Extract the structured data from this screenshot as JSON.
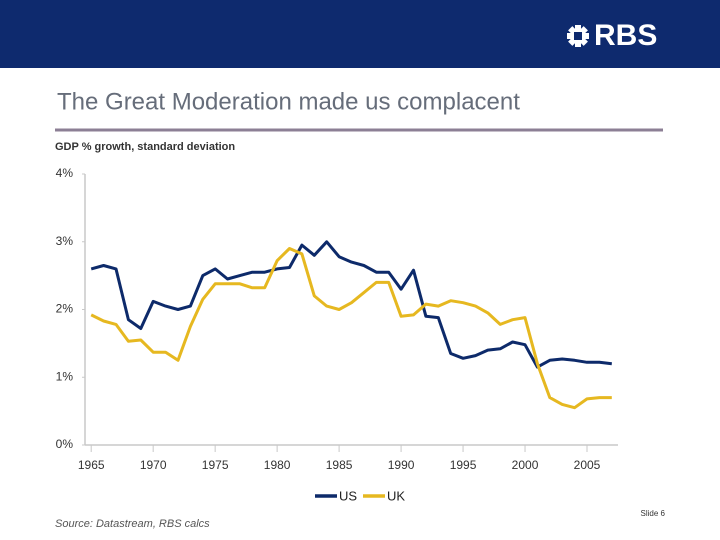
{
  "header": {
    "logo": "RBS"
  },
  "chart_data": {
    "type": "line",
    "title": "The Great Moderation made us complacent",
    "subtitle": "GDP % growth, standard deviation",
    "x": [
      1965,
      1966,
      1967,
      1968,
      1969,
      1970,
      1971,
      1972,
      1973,
      1974,
      1975,
      1976,
      1977,
      1978,
      1979,
      1980,
      1981,
      1982,
      1983,
      1984,
      1985,
      1986,
      1987,
      1988,
      1989,
      1990,
      1991,
      1992,
      1993,
      1994,
      1995,
      1996,
      1997,
      1998,
      1999,
      2000,
      2001,
      2002,
      2003,
      2004,
      2005,
      2006,
      2007
    ],
    "series": [
      {
        "name": "US",
        "color": "#0d2a6a",
        "values": [
          2.6,
          2.65,
          2.6,
          1.85,
          1.72,
          2.12,
          2.05,
          2.0,
          2.05,
          2.5,
          2.6,
          2.45,
          2.5,
          2.55,
          2.55,
          2.6,
          2.62,
          2.95,
          2.8,
          3.0,
          2.78,
          2.7,
          2.65,
          2.55,
          2.55,
          2.3,
          2.58,
          1.9,
          1.88,
          1.35,
          1.28,
          1.32,
          1.4,
          1.42,
          1.52,
          1.48,
          1.15,
          1.25,
          1.27,
          1.25,
          1.22,
          1.22,
          1.2
        ]
      },
      {
        "name": "UK",
        "color": "#e6b820",
        "values": [
          1.92,
          1.83,
          1.78,
          1.53,
          1.55,
          1.37,
          1.37,
          1.25,
          1.75,
          2.15,
          2.38,
          2.38,
          2.38,
          2.32,
          2.32,
          2.72,
          2.9,
          2.82,
          2.2,
          2.05,
          2.0,
          2.1,
          2.25,
          2.4,
          2.4,
          1.9,
          1.92,
          2.08,
          2.05,
          2.13,
          2.1,
          2.05,
          1.95,
          1.78,
          1.85,
          1.88,
          1.2,
          0.7,
          0.6,
          0.55,
          0.68,
          0.7,
          0.7
        ]
      }
    ],
    "xlim": [
      1964.5,
      2007.5
    ],
    "xticks": [
      1965,
      1970,
      1975,
      1980,
      1985,
      1990,
      1995,
      2000,
      2005
    ],
    "ylim": [
      0,
      4
    ],
    "yticks": [
      {
        "value": 0,
        "label": "0%"
      },
      {
        "value": 1,
        "label": "1%"
      },
      {
        "value": 2,
        "label": "2%"
      },
      {
        "value": 3,
        "label": "3%"
      },
      {
        "value": 4,
        "label": "4%"
      }
    ],
    "legend": "bottom",
    "source": "Source: Datastream, RBS calcs"
  },
  "footer": {
    "slide": "Slide 6"
  }
}
